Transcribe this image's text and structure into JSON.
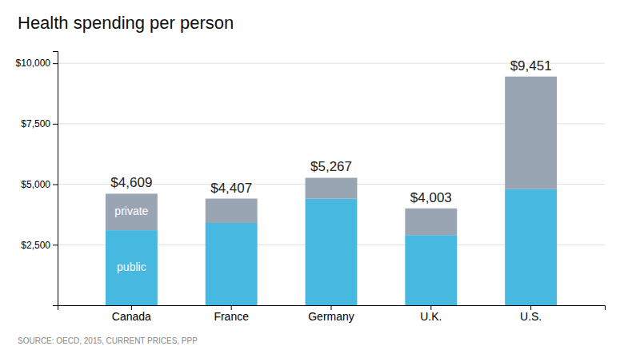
{
  "chart_data": {
    "type": "bar",
    "stacked": true,
    "title": "Health spending per person",
    "source": "SOURCE: OECD, 2015, CURRENT PRICES, PPP",
    "categories": [
      "Canada",
      "France",
      "Germany",
      "U.K.",
      "U.S."
    ],
    "series": [
      {
        "name": "public",
        "color": "#47b8e0",
        "values": [
          3100,
          3400,
          4400,
          2900,
          4800
        ]
      },
      {
        "name": "private",
        "color": "#9aa5b4",
        "values": [
          1509,
          1007,
          867,
          1103,
          4651
        ]
      }
    ],
    "totals": [
      4609,
      4407,
      5267,
      4003,
      9451
    ],
    "total_labels": [
      "$4,609",
      "$4,407",
      "$5,267",
      "$4,003",
      "$9,451"
    ],
    "ylim": [
      0,
      10500
    ],
    "yticks": [
      {
        "value": 2500,
        "label": "$2,500"
      },
      {
        "value": 5000,
        "label": "$5,000"
      },
      {
        "value": 7500,
        "label": "$7,500"
      },
      {
        "value": 10000,
        "label": "$10,000"
      }
    ],
    "grid": true
  }
}
